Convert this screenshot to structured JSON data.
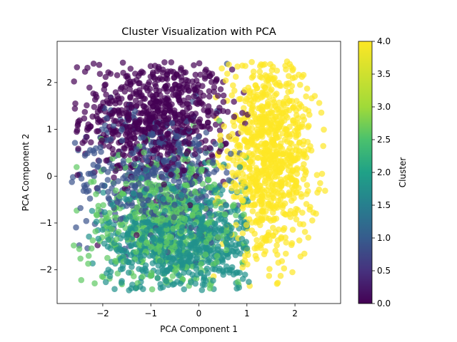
{
  "chart_data": {
    "type": "scatter",
    "title": "Cluster Visualization with PCA",
    "xlabel": "PCA Component 1",
    "ylabel": "PCA Component 2",
    "xlim": [
      -2.95,
      2.95
    ],
    "ylim": [
      -2.72,
      2.88
    ],
    "xticks": [
      -2,
      -1,
      0,
      1,
      2
    ],
    "yticks": [
      -2,
      -1,
      0,
      1,
      2
    ],
    "xtick_labels": [
      "−2",
      "−1",
      "0",
      "1",
      "2"
    ],
    "ytick_labels": [
      "−2",
      "−1",
      "0",
      "1",
      "2"
    ],
    "grid": false,
    "marker_alpha": 0.7,
    "colorbar": {
      "label": "Cluster",
      "colormap": "viridis",
      "range": [
        0.0,
        4.0
      ],
      "ticks": [
        0.0,
        0.5,
        1.0,
        1.5,
        2.0,
        2.5,
        3.0,
        3.5,
        4.0
      ],
      "tick_labels": [
        "0.0",
        "0.5",
        "1.0",
        "1.5",
        "2.0",
        "2.5",
        "3.0",
        "3.5",
        "4.0"
      ]
    },
    "clusters": [
      {
        "value": 0,
        "color": "#440154",
        "center": [
          -0.9,
          1.25
        ],
        "spread": [
          0.78,
          0.65
        ],
        "approx_points": 700
      },
      {
        "value": 1,
        "color": "#3b528b",
        "center": [
          -0.9,
          0.0
        ],
        "spread": [
          0.9,
          0.7
        ],
        "approx_points": 450
      },
      {
        "value": 2,
        "color": "#21918c",
        "center": [
          -0.35,
          -1.35
        ],
        "spread": [
          0.8,
          0.62
        ],
        "approx_points": 750
      },
      {
        "value": 3,
        "color": "#5ec962",
        "center": [
          -0.7,
          -1.0
        ],
        "spread": [
          0.85,
          0.75
        ],
        "approx_points": 500
      },
      {
        "value": 4,
        "color": "#fde725",
        "center": [
          1.45,
          0.45
        ],
        "spread": [
          0.48,
          1.05
        ],
        "approx_points": 850
      }
    ]
  }
}
